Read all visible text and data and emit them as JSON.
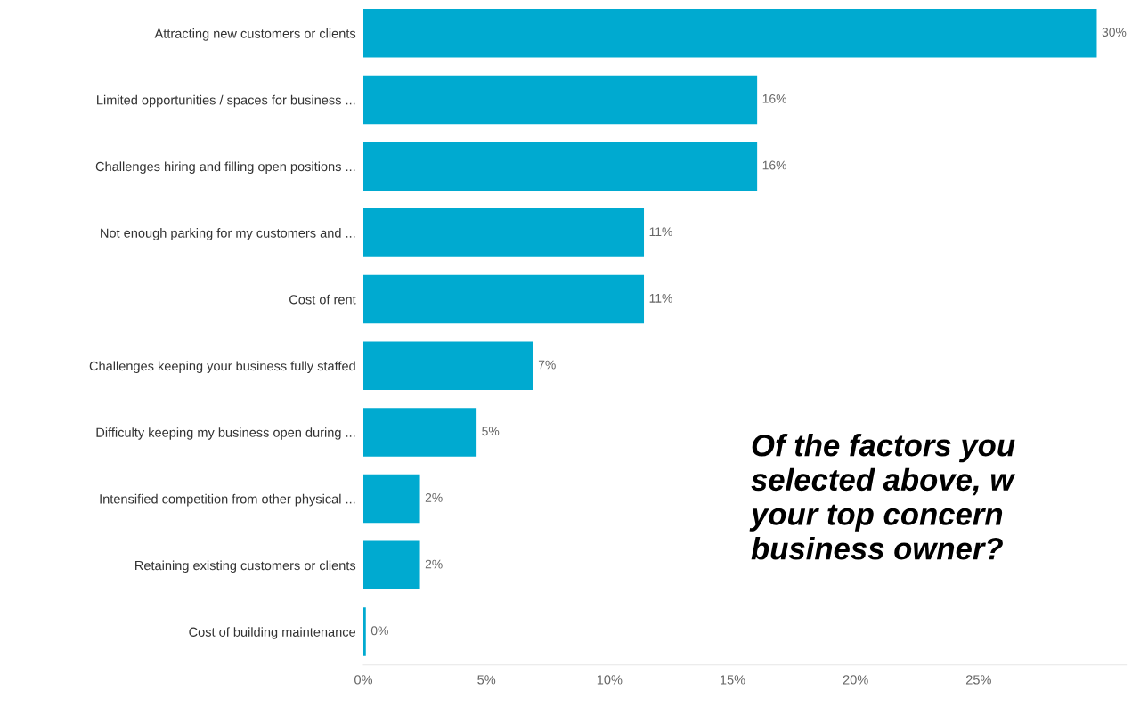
{
  "chart_data": {
    "type": "bar",
    "orientation": "horizontal",
    "categories": [
      "Attracting new customers or clients",
      "Limited opportunities / spaces for business ...",
      "Challenges hiring and filling open positions ...",
      "Not enough parking for my customers and ...",
      "Cost of rent",
      "Challenges keeping your business fully staffed",
      "Difficulty keeping my business open during ...",
      "Intensified competition from other physical ...",
      "Retaining existing customers or clients",
      "Cost of building maintenance"
    ],
    "values": [
      29.8,
      16.0,
      16.0,
      11.4,
      11.4,
      6.9,
      4.6,
      2.3,
      2.3,
      0.1
    ],
    "value_labels": [
      "30%",
      "16%",
      "16%",
      "11%",
      "11%",
      "7%",
      "5%",
      "2%",
      "2%",
      "0%"
    ],
    "color": "#00aad0",
    "xlim": [
      0,
      31
    ],
    "xticks": [
      {
        "value": 0,
        "label": "0%"
      },
      {
        "value": 5,
        "label": "5%"
      },
      {
        "value": 10,
        "label": "10%"
      },
      {
        "value": 15,
        "label": "15%"
      },
      {
        "value": 20,
        "label": "20%"
      },
      {
        "value": 25,
        "label": "25%"
      }
    ],
    "grid": false,
    "annotations": [
      "Of the factors you\nselected above, w\nyour top concern\nbusiness owner?"
    ]
  }
}
